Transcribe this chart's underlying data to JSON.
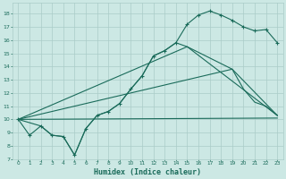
{
  "xlabel": "Humidex (Indice chaleur)",
  "xlim": [
    -0.5,
    23.5
  ],
  "ylim": [
    7,
    18.8
  ],
  "xticks": [
    0,
    1,
    2,
    3,
    4,
    5,
    6,
    7,
    8,
    9,
    10,
    11,
    12,
    13,
    14,
    15,
    16,
    17,
    18,
    19,
    20,
    21,
    22,
    23
  ],
  "yticks": [
    7,
    8,
    9,
    10,
    11,
    12,
    13,
    14,
    15,
    16,
    17,
    18
  ],
  "bg_color": "#cce8e4",
  "grid_color": "#aaccc8",
  "line_color": "#1a6b5a",
  "line1_x": [
    0,
    1,
    2,
    3,
    4,
    5,
    6,
    7,
    8,
    9,
    10,
    11,
    12,
    13,
    14,
    15,
    16,
    17,
    18,
    19,
    20,
    21,
    22,
    23
  ],
  "line1_y": [
    10.0,
    8.8,
    9.5,
    8.8,
    8.7,
    7.3,
    9.3,
    10.3,
    10.6,
    11.2,
    12.3,
    13.3,
    14.8,
    15.2,
    15.8,
    17.2,
    17.9,
    18.2,
    17.9,
    17.5,
    17.0,
    16.7,
    16.8,
    15.8
  ],
  "line2_x": [
    0,
    2,
    3,
    4,
    5,
    6,
    7,
    8,
    9,
    10,
    11,
    12,
    13,
    14,
    15,
    19,
    20,
    21,
    22,
    23
  ],
  "line2_y": [
    10.0,
    9.5,
    8.8,
    8.7,
    7.3,
    9.3,
    10.3,
    10.6,
    11.2,
    12.3,
    13.3,
    14.8,
    15.2,
    15.8,
    15.5,
    13.8,
    12.3,
    11.3,
    11.0,
    10.3
  ],
  "line3_x": [
    0,
    23
  ],
  "line3_y": [
    10.0,
    10.1
  ],
  "line4_x": [
    0,
    19,
    23
  ],
  "line4_y": [
    10.0,
    13.8,
    10.3
  ],
  "line5_x": [
    0,
    15,
    23
  ],
  "line5_y": [
    10.0,
    15.5,
    10.3
  ]
}
